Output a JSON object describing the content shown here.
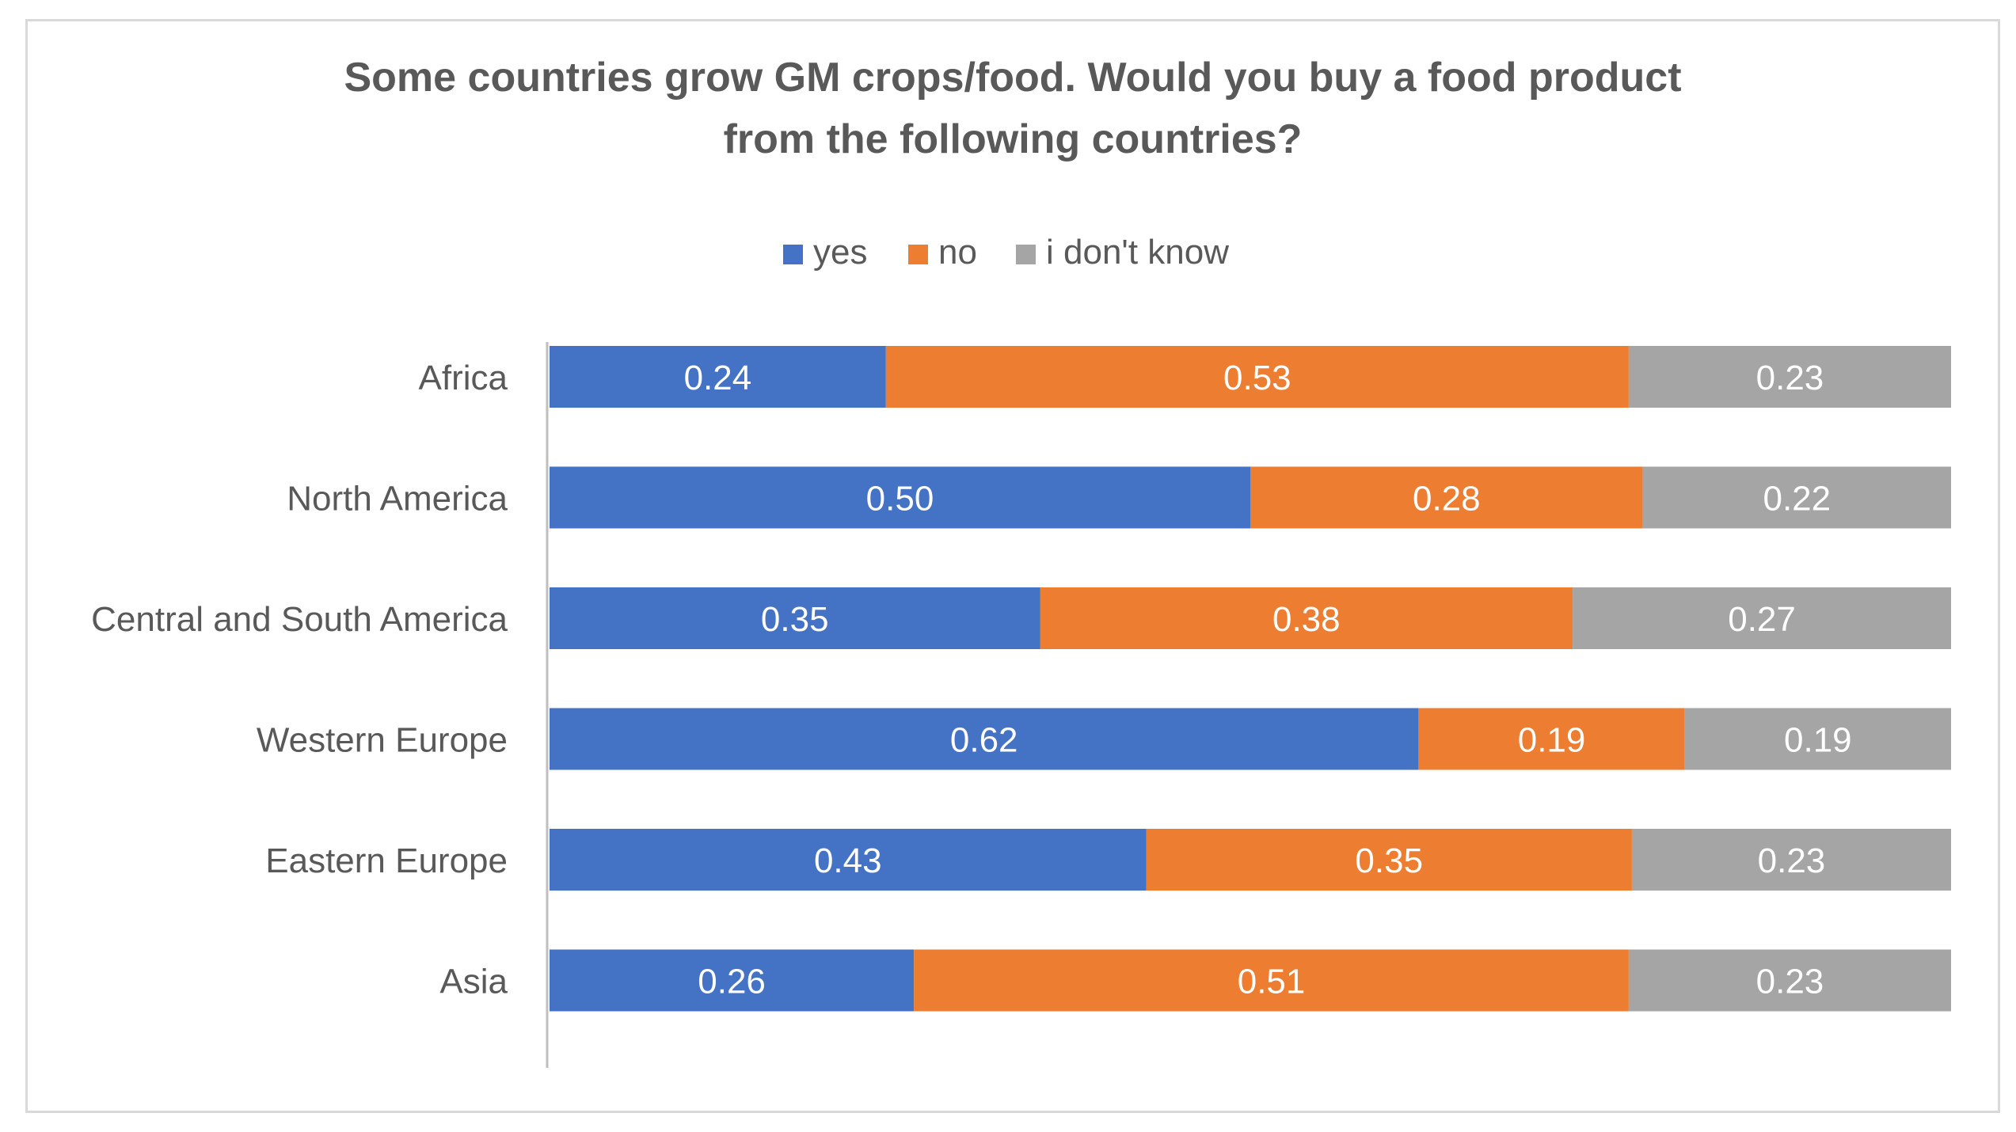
{
  "chart_data": {
    "type": "bar",
    "orientation": "horizontal",
    "stacked": true,
    "title_lines": [
      "Some countries grow GM crops/food. Would you buy a food product",
      "from the following countries?"
    ],
    "categories": [
      "Africa",
      "North America",
      "Central and South America",
      "Western Europe",
      "Eastern Europe",
      "Asia"
    ],
    "series": [
      {
        "name": "yes",
        "color": "#4472c4",
        "values": [
          0.24,
          0.5,
          0.35,
          0.62,
          0.43,
          0.26
        ],
        "labels": [
          "0.24",
          "0.50",
          "0.35",
          "0.62",
          "0.43",
          "0.26"
        ]
      },
      {
        "name": "no",
        "color": "#ed7d31",
        "values": [
          0.53,
          0.28,
          0.38,
          0.19,
          0.35,
          0.51
        ],
        "labels": [
          "0.53",
          "0.28",
          "0.38",
          "0.19",
          "0.35",
          "0.51"
        ]
      },
      {
        "name": "i don't know",
        "color": "#a5a5a5",
        "values": [
          0.23,
          0.22,
          0.27,
          0.19,
          0.23,
          0.23
        ],
        "labels": [
          "0.23",
          "0.22",
          "0.27",
          "0.19",
          "0.23",
          "0.23"
        ]
      }
    ],
    "legend_position": "top",
    "xlim": [
      0,
      1
    ],
    "grid": false
  }
}
